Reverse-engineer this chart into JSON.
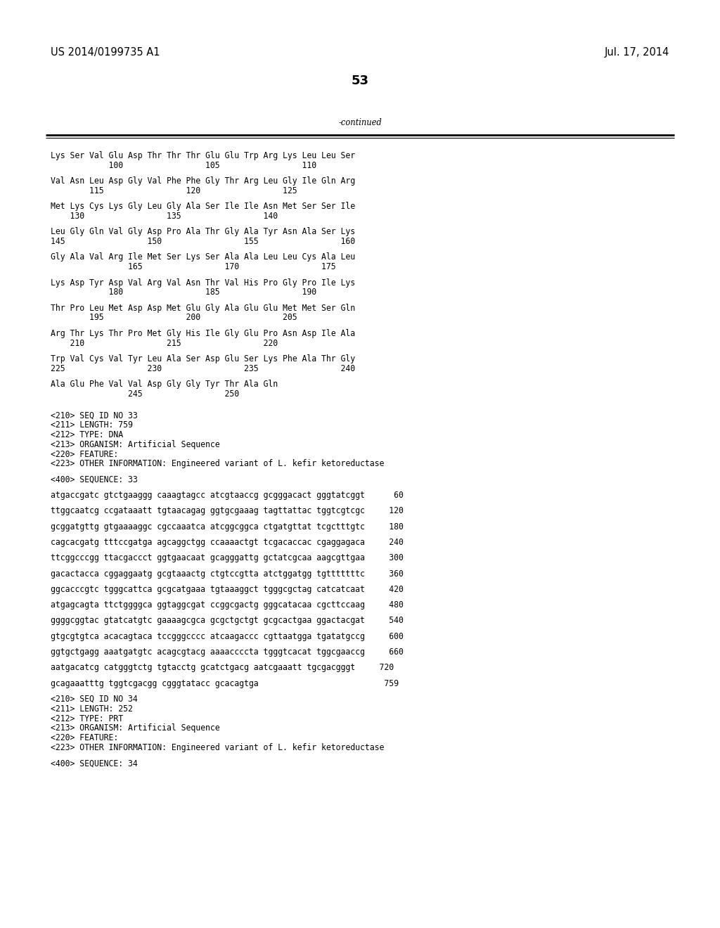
{
  "header_left": "US 2014/0199735 A1",
  "header_right": "Jul. 17, 2014",
  "page_number": "53",
  "continued_label": "-continued",
  "background_color": "#ffffff",
  "text_color": "#000000",
  "font_size_header": 10.5,
  "font_size_body": 8.3,
  "font_size_page": 13,
  "sequence_lines": [
    "Lys Ser Val Glu Asp Thr Thr Thr Glu Glu Trp Arg Lys Leu Leu Ser",
    "            100                 105                 110",
    "",
    "Val Asn Leu Asp Gly Val Phe Phe Gly Thr Arg Leu Gly Ile Gln Arg",
    "        115                 120                 125",
    "",
    "Met Lys Cys Lys Gly Leu Gly Ala Ser Ile Ile Asn Met Ser Ser Ile",
    "    130                 135                 140",
    "",
    "Leu Gly Gln Val Gly Asp Pro Ala Thr Gly Ala Tyr Asn Ala Ser Lys",
    "145                 150                 155                 160",
    "",
    "Gly Ala Val Arg Ile Met Ser Lys Ser Ala Ala Leu Leu Cys Ala Leu",
    "                165                 170                 175",
    "",
    "Lys Asp Tyr Asp Val Arg Val Asn Thr Val His Pro Gly Pro Ile Lys",
    "            180                 185                 190",
    "",
    "Thr Pro Leu Met Asp Asp Met Glu Gly Ala Glu Glu Met Met Ser Gln",
    "        195                 200                 205",
    "",
    "Arg Thr Lys Thr Pro Met Gly His Ile Gly Glu Pro Asn Asp Ile Ala",
    "    210                 215                 220",
    "",
    "Trp Val Cys Val Tyr Leu Ala Ser Asp Glu Ser Lys Phe Ala Thr Gly",
    "225                 230                 235                 240",
    "",
    "Ala Glu Phe Val Val Asp Gly Gly Tyr Thr Ala Gln",
    "                245                 250",
    "",
    "",
    "<210> SEQ ID NO 33",
    "<211> LENGTH: 759",
    "<212> TYPE: DNA",
    "<213> ORGANISM: Artificial Sequence",
    "<220> FEATURE:",
    "<223> OTHER INFORMATION: Engineered variant of L. kefir ketoreductase",
    "",
    "<400> SEQUENCE: 33",
    "",
    "atgaccgatc gtctgaaggg caaagtagcc atcgtaaccg gcgggacact gggtatcggt      60",
    "",
    "ttggcaatcg ccgataaatt tgtaacagag ggtgcgaaag tagttattac tggtcgtcgc     120",
    "",
    "gcggatgttg gtgaaaaggc cgccaaatca atcggcggca ctgatgttat tcgctttgtc     180",
    "",
    "cagcacgatg tttccgatga agcaggctgg ccaaaactgt tcgacaccac cgaggagaca     240",
    "",
    "ttcggcccgg ttacgaccct ggtgaacaat gcagggattg gctatcgcaa aagcgttgaa     300",
    "",
    "gacactacca cggaggaatg gcgtaaactg ctgtccgtta atctggatgg tgtttttttc     360",
    "",
    "ggcacccgtc tgggcattca gcgcatgaaa tgtaaaggct tgggcgctag catcatcaat     420",
    "",
    "atgagcagta ttctggggca ggtaggcgat ccggcgactg gggcatacaa cgcttccaag     480",
    "",
    "ggggcggtac gtatcatgtc gaaaagcgca gcgctgctgt gcgcactgaa ggactacgat     540",
    "",
    "gtgcgtgtca acacagtaca tccgggcccc atcaagaccc cgttaatgga tgatatgccg     600",
    "",
    "ggtgctgagg aaatgatgtc acagcgtacg aaaaccccta tgggtcacat tggcgaaccg     660",
    "",
    "aatgacatcg catgggtctg tgtacctg gcatctgacg aatcgaaatt tgcgacgggt     720",
    "",
    "gcagaaatttg tggtcgacgg cgggtatacc gcacagtga                          759",
    "",
    "<210> SEQ ID NO 34",
    "<211> LENGTH: 252",
    "<212> TYPE: PRT",
    "<213> ORGANISM: Artificial Sequence",
    "<220> FEATURE:",
    "<223> OTHER INFORMATION: Engineered variant of L. kefir ketoreductase",
    "",
    "<400> SEQUENCE: 34"
  ]
}
